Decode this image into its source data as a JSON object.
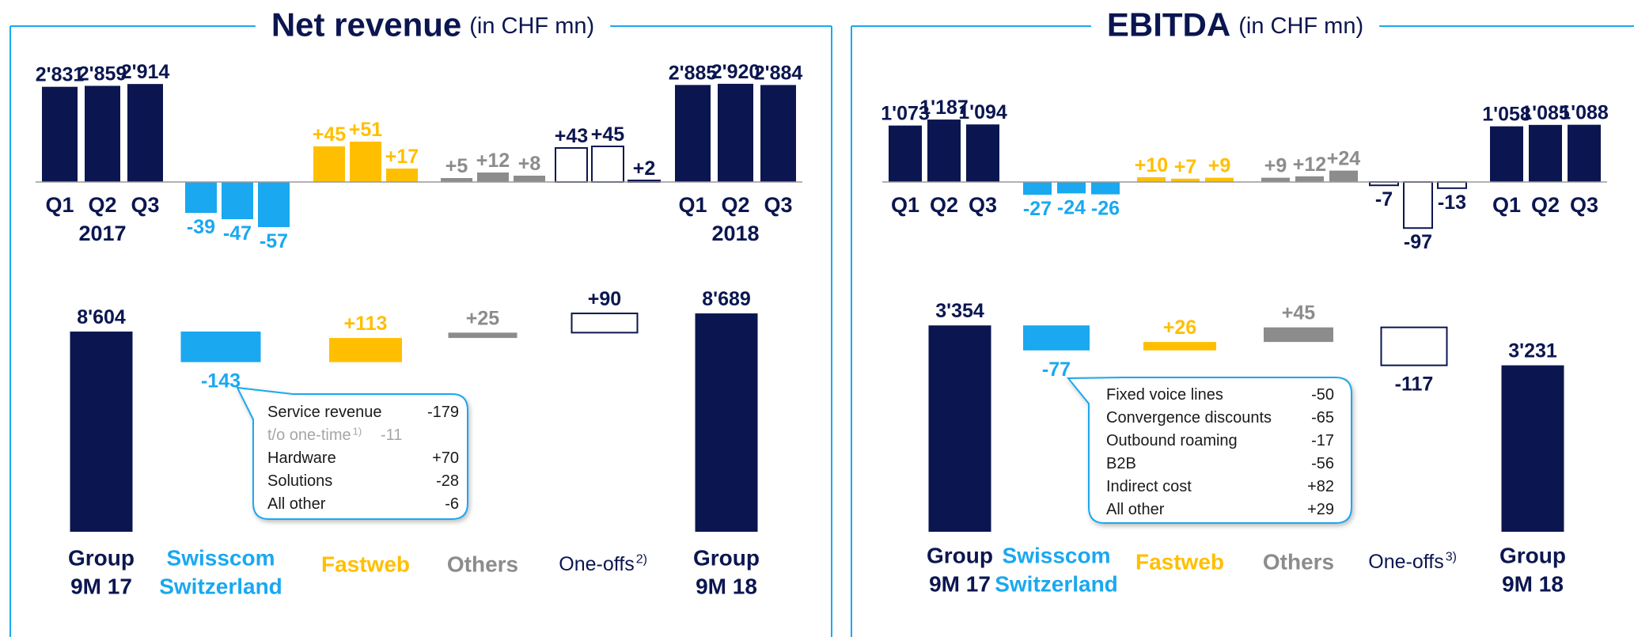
{
  "chart_data": [
    {
      "type": "waterfall",
      "title": "Net revenue",
      "subtitle": "(in CHF mn)",
      "quarters": [
        "Q1",
        "Q2",
        "Q3"
      ],
      "years": [
        "2017",
        "2018"
      ],
      "quarterly_groups": [
        {
          "kind": "total",
          "color": "#0b1650",
          "style": "solid",
          "values": [
            2831,
            2859,
            2914
          ],
          "value_labels": [
            "2'831",
            "2'859",
            "2'914"
          ]
        },
        {
          "kind": "delta",
          "color": "#1aa8f0",
          "style": "solid",
          "values": [
            -39,
            -47,
            -57
          ]
        },
        {
          "kind": "delta",
          "color": "#ffbf00",
          "style": "solid",
          "values": [
            45,
            51,
            17
          ],
          "value_labels": [
            "+45",
            "+51",
            "+17"
          ]
        },
        {
          "kind": "delta",
          "color": "#8c8c8c",
          "style": "solid",
          "values": [
            5,
            12,
            8
          ],
          "value_labels": [
            "+5",
            "+12",
            "+8"
          ]
        },
        {
          "kind": "delta",
          "color": "#0b1650",
          "style": "outline",
          "values": [
            43,
            45,
            2
          ],
          "value_labels": [
            "+43",
            "+45",
            "+2"
          ]
        },
        {
          "kind": "total",
          "color": "#0b1650",
          "style": "solid",
          "values": [
            2885,
            2920,
            2884
          ],
          "value_labels": [
            "2'885",
            "2'920",
            "2'884"
          ]
        }
      ],
      "bridge": {
        "categories": [
          [
            "Group",
            "9M 17"
          ],
          [
            "Swisscom",
            "Switzerland"
          ],
          [
            "Fastweb"
          ],
          [
            "Others"
          ],
          [
            "One-offs"
          ],
          [
            "Group",
            "9M 18"
          ]
        ],
        "notes": [
          null,
          null,
          null,
          null,
          "2)",
          null
        ],
        "values": [
          8604,
          -143,
          113,
          25,
          90,
          8689
        ],
        "value_labels": [
          "8'604",
          "-143",
          "+113",
          "+25",
          "+90",
          "8'689"
        ]
      },
      "callout": {
        "anchor": 1,
        "rows": [
          {
            "label": "Service revenue",
            "value": -179
          },
          {
            "label": "t/o one-time",
            "note": "1)",
            "value": -11,
            "muted": true
          },
          {
            "label": "Hardware",
            "value": 70,
            "value_label": "+70"
          },
          {
            "label": "Solutions",
            "value": -28
          },
          {
            "label": "All other",
            "value": -6
          }
        ]
      }
    },
    {
      "type": "waterfall",
      "title": "EBITDA",
      "subtitle": "(in CHF mn)",
      "quarters": [
        "Q1",
        "Q2",
        "Q3"
      ],
      "quarterly_groups": [
        {
          "kind": "total",
          "color": "#0b1650",
          "style": "solid",
          "values": [
            1073,
            1187,
            1094
          ],
          "value_labels": [
            "1'073",
            "1'187",
            "1'094"
          ]
        },
        {
          "kind": "delta",
          "color": "#1aa8f0",
          "style": "solid",
          "values": [
            -27,
            -24,
            -26
          ]
        },
        {
          "kind": "delta",
          "color": "#ffbf00",
          "style": "solid",
          "values": [
            10,
            7,
            9
          ],
          "value_labels": [
            "+10",
            "+7",
            "+9"
          ]
        },
        {
          "kind": "delta",
          "color": "#8c8c8c",
          "style": "solid",
          "values": [
            9,
            12,
            24
          ],
          "value_labels": [
            "+9",
            "+12",
            "+24"
          ]
        },
        {
          "kind": "delta",
          "color": "#0b1650",
          "style": "outline",
          "values": [
            -7,
            -97,
            -13
          ]
        },
        {
          "kind": "total",
          "color": "#0b1650",
          "style": "solid",
          "values": [
            1058,
            1085,
            1088
          ],
          "value_labels": [
            "1'058",
            "1'085",
            "1'088"
          ]
        }
      ],
      "bridge": {
        "categories": [
          [
            "Group",
            "9M 17"
          ],
          [
            "Swisscom",
            "Switzerland"
          ],
          [
            "Fastweb"
          ],
          [
            "Others"
          ],
          [
            "One-offs"
          ],
          [
            "Group",
            "9M 18"
          ]
        ],
        "notes": [
          null,
          null,
          null,
          null,
          "3)",
          null
        ],
        "values": [
          3354,
          -77,
          26,
          45,
          -117,
          3231
        ],
        "value_labels": [
          "3'354",
          "-77",
          "+26",
          "+45",
          "-117",
          "3'231"
        ]
      },
      "callout": {
        "anchor": 1,
        "rows": [
          {
            "label": "Fixed voice lines",
            "value": -50
          },
          {
            "label": "Convergence discounts",
            "value": -65
          },
          {
            "label": "Outbound roaming",
            "value": -17
          },
          {
            "label": "B2B",
            "value": -56
          },
          {
            "label": "Indirect cost",
            "value": 82,
            "value_label": "+82"
          },
          {
            "label": "All other",
            "value": 29,
            "value_label": "+29"
          }
        ]
      }
    }
  ]
}
